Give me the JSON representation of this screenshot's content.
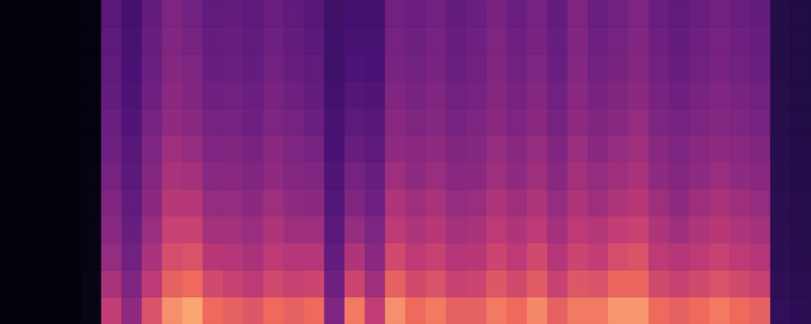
{
  "chart_data": {
    "type": "heatmap",
    "tick_labels": false,
    "color_range": [
      0,
      100
    ],
    "cells": [
      [
        2,
        2,
        2,
        2,
        4,
        45,
        38,
        48,
        55,
        52,
        47,
        48,
        46,
        50,
        47,
        44,
        35,
        38,
        38,
        52,
        50,
        52,
        48,
        50,
        54,
        50,
        53,
        48,
        55,
        50,
        52,
        55,
        50,
        47,
        50,
        52,
        50,
        48,
        24,
        22
      ],
      [
        2,
        2,
        2,
        2,
        4,
        46,
        39,
        49,
        56,
        53,
        48,
        49,
        47,
        51,
        48,
        45,
        36,
        39,
        39,
        53,
        51,
        53,
        49,
        51,
        55,
        51,
        54,
        49,
        56,
        51,
        53,
        56,
        51,
        48,
        51,
        53,
        51,
        49,
        24,
        22
      ],
      [
        2,
        2,
        2,
        2,
        4,
        47,
        40,
        50,
        57,
        55,
        49,
        50,
        48,
        52,
        49,
        47,
        36,
        41,
        40,
        54,
        52,
        54,
        50,
        52,
        56,
        52,
        55,
        50,
        57,
        52,
        54,
        57,
        52,
        49,
        52,
        54,
        52,
        50,
        24,
        22
      ],
      [
        2,
        2,
        2,
        2,
        4,
        48,
        41,
        51,
        59,
        56,
        51,
        52,
        50,
        54,
        51,
        48,
        37,
        43,
        42,
        56,
        54,
        56,
        52,
        53,
        57,
        54,
        57,
        52,
        58,
        54,
        56,
        59,
        54,
        51,
        54,
        56,
        54,
        52,
        25,
        23
      ],
      [
        2,
        2,
        2,
        2,
        4,
        50,
        42,
        53,
        60,
        58,
        53,
        53,
        51,
        55,
        53,
        50,
        39,
        46,
        44,
        58,
        55,
        57,
        53,
        55,
        59,
        55,
        59,
        53,
        60,
        56,
        58,
        61,
        55,
        53,
        55,
        57,
        55,
        53,
        25,
        23
      ],
      [
        2,
        2,
        2,
        2,
        4,
        51,
        44,
        55,
        63,
        61,
        55,
        56,
        54,
        58,
        55,
        53,
        40,
        49,
        46,
        60,
        58,
        60,
        56,
        57,
        61,
        58,
        61,
        56,
        62,
        58,
        61,
        63,
        58,
        55,
        58,
        60,
        58,
        56,
        26,
        24
      ],
      [
        2,
        2,
        2,
        2,
        5,
        53,
        45,
        57,
        65,
        64,
        58,
        58,
        56,
        60,
        57,
        56,
        42,
        53,
        49,
        63,
        60,
        62,
        58,
        59,
        63,
        60,
        63,
        58,
        64,
        61,
        63,
        65,
        60,
        57,
        60,
        62,
        60,
        58,
        26,
        24
      ],
      [
        2,
        2,
        2,
        2,
        5,
        56,
        47,
        59,
        68,
        67,
        61,
        61,
        59,
        63,
        60,
        59,
        43,
        56,
        51,
        66,
        63,
        65,
        61,
        62,
        66,
        63,
        66,
        61,
        66,
        63,
        66,
        68,
        63,
        60,
        63,
        65,
        63,
        61,
        27,
        25
      ],
      [
        2,
        2,
        2,
        2,
        5,
        58,
        49,
        62,
        71,
        71,
        64,
        64,
        62,
        66,
        63,
        63,
        45,
        61,
        55,
        69,
        66,
        68,
        64,
        65,
        69,
        66,
        69,
        64,
        69,
        67,
        70,
        71,
        66,
        63,
        66,
        68,
        66,
        64,
        27,
        25
      ],
      [
        2,
        2,
        2,
        2,
        5,
        61,
        52,
        65,
        74,
        75,
        68,
        67,
        65,
        69,
        67,
        67,
        48,
        66,
        58,
        73,
        69,
        71,
        67,
        68,
        72,
        69,
        73,
        67,
        72,
        70,
        74,
        75,
        69,
        67,
        69,
        71,
        69,
        67,
        28,
        26
      ],
      [
        2,
        2,
        2,
        2,
        6,
        65,
        55,
        69,
        78,
        80,
        73,
        71,
        69,
        73,
        71,
        72,
        51,
        72,
        63,
        78,
        73,
        75,
        71,
        72,
        76,
        73,
        77,
        71,
        76,
        75,
        79,
        79,
        73,
        71,
        73,
        75,
        73,
        71,
        29,
        27
      ],
      [
        2,
        2,
        2,
        2,
        6,
        70,
        60,
        75,
        85,
        88,
        80,
        78,
        76,
        80,
        78,
        80,
        55,
        82,
        70,
        85,
        80,
        82,
        78,
        78,
        82,
        80,
        84,
        78,
        82,
        82,
        86,
        86,
        80,
        78,
        80,
        82,
        80,
        78,
        30,
        28
      ]
    ]
  }
}
